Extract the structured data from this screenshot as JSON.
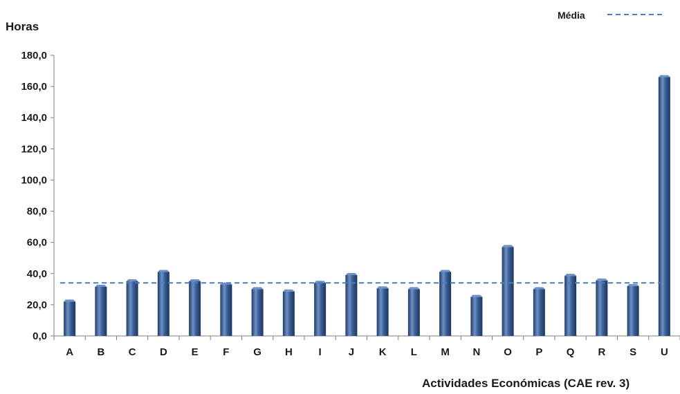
{
  "chart_data": {
    "type": "bar",
    "ylabel": "Horas",
    "xlabel": "Actividades Económicas (CAE rev. 3)",
    "ylim": [
      0,
      180
    ],
    "yticks": [
      "0,0",
      "20,0",
      "40,0",
      "60,0",
      "80,0",
      "100,0",
      "120,0",
      "140,0",
      "160,0",
      "180,0"
    ],
    "categories": [
      "A",
      "B",
      "C",
      "D",
      "E",
      "F",
      "G",
      "H",
      "I",
      "J",
      "K",
      "L",
      "M",
      "N",
      "O",
      "P",
      "Q",
      "R",
      "S",
      "U"
    ],
    "series": [
      {
        "values": [
          22,
          31.5,
          35,
          41,
          35,
          33,
          30,
          28.5,
          34,
          39,
          30.5,
          30,
          41,
          25,
          57,
          30,
          38.5,
          35.5,
          32,
          166
        ]
      }
    ],
    "reference_line": {
      "name": "Média",
      "value": 34
    },
    "grid": false,
    "legend": "top-right",
    "colors": {
      "bar": "#3a5f95",
      "bar_dark": "#1f3a66",
      "bar_light": "#6d91c6",
      "mean_line": "#4a7dc0",
      "axis": "#7f7f7f"
    }
  }
}
